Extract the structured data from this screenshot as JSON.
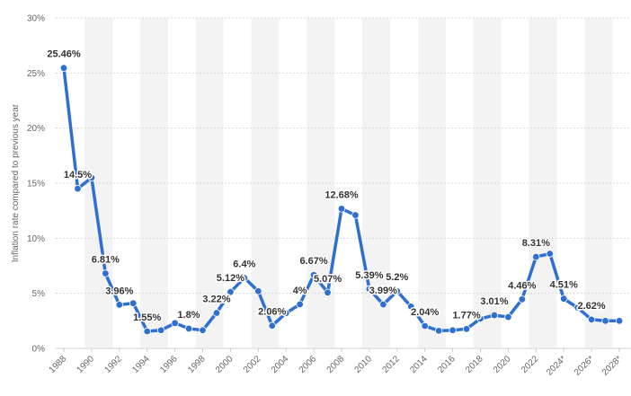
{
  "chart_data": {
    "type": "line",
    "title": "",
    "xlabel": "",
    "ylabel": "Inflation rate compared to previous year",
    "ylim": [
      0,
      30
    ],
    "y_ticks": [
      0,
      5,
      10,
      15,
      20,
      25,
      30
    ],
    "y_tick_labels": [
      "0%",
      "5%",
      "10%",
      "15%",
      "20%",
      "25%",
      "30%"
    ],
    "x_tick_labels": [
      "1988",
      "1990",
      "1992",
      "1994",
      "1996",
      "1998",
      "2000",
      "2002",
      "2004",
      "2006",
      "2008",
      "2010",
      "2012",
      "2014",
      "2016",
      "2018",
      "2020",
      "2022",
      "2024*",
      "2026*",
      "2028*"
    ],
    "grid": true,
    "line_color": "#2f6fd0",
    "series": [
      {
        "name": "Inflation rate",
        "x": [
          "1988",
          "1989",
          "1990",
          "1991",
          "1992",
          "1993",
          "1994",
          "1995",
          "1996",
          "1997",
          "1998",
          "1999",
          "2000",
          "2001",
          "2002",
          "2003",
          "2004",
          "2005",
          "2006",
          "2007",
          "2008",
          "2009",
          "2010",
          "2011",
          "2012",
          "2013",
          "2014",
          "2015",
          "2016",
          "2017",
          "2018",
          "2019",
          "2020",
          "2021",
          "2022",
          "2023",
          "2024*",
          "2025*",
          "2026*",
          "2027*",
          "2028*"
        ],
        "values": [
          25.46,
          14.5,
          15.5,
          6.81,
          3.96,
          4.1,
          1.55,
          1.65,
          2.3,
          1.8,
          1.65,
          3.22,
          5.12,
          6.4,
          5.2,
          2.06,
          3.2,
          4.0,
          6.67,
          5.07,
          12.68,
          12.1,
          5.39,
          3.99,
          5.2,
          3.8,
          2.04,
          1.6,
          1.65,
          1.77,
          2.7,
          3.01,
          2.85,
          4.46,
          8.31,
          8.6,
          4.51,
          3.7,
          2.62,
          2.5,
          2.5
        ],
        "labels": [
          "25.46%",
          "14.5%",
          "",
          "6.81%",
          "3.96%",
          "",
          "1.55%",
          "",
          "",
          "1.8%",
          "",
          "3.22%",
          "5.12%",
          "6.4%",
          "",
          "2.06%",
          "",
          "4%",
          "6.67%",
          "5.07%",
          "12.68%",
          "",
          "5.39%",
          "3.99%",
          "5.2%",
          "",
          "2.04%",
          "",
          "",
          "1.77%",
          "",
          "3.01%",
          "",
          "4.46%",
          "8.31%",
          "",
          "4.51%",
          "",
          "2.62%",
          "",
          ""
        ]
      }
    ]
  }
}
